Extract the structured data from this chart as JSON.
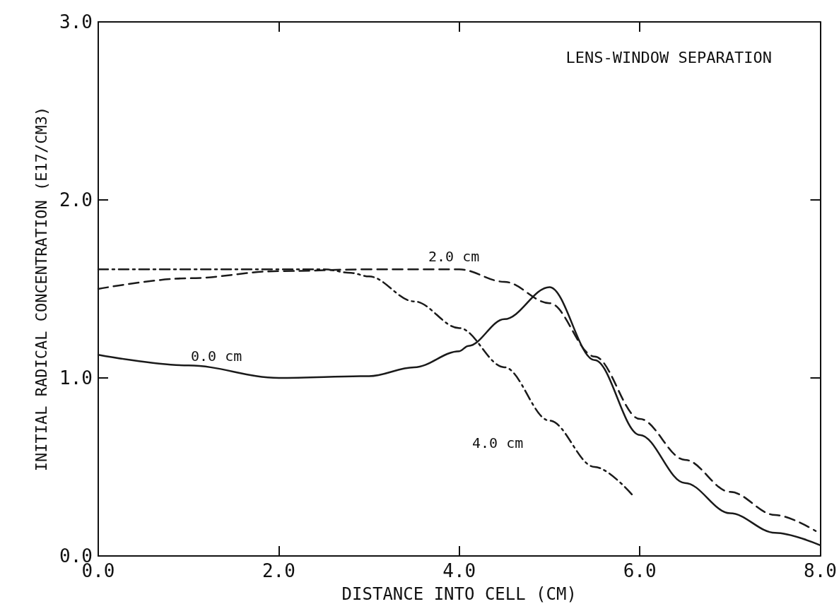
{
  "chart_data": {
    "type": "line",
    "title": "LENS-WINDOW SEPARATION",
    "xlabel": "DISTANCE INTO CELL (CM)",
    "ylabel": "INITIAL RADICAL CONCENTRATION (E17/CM3)",
    "xlim": [
      0,
      8
    ],
    "ylim": [
      0,
      3
    ],
    "xticks": [
      {
        "value": 0,
        "label": "0.0"
      },
      {
        "value": 2,
        "label": "2.0"
      },
      {
        "value": 4,
        "label": "4.0"
      },
      {
        "value": 6,
        "label": "6.0"
      },
      {
        "value": 8,
        "label": "8.0"
      }
    ],
    "yticks": [
      {
        "value": 0,
        "label": "0.0"
      },
      {
        "value": 1,
        "label": "1.0"
      },
      {
        "value": 2,
        "label": "2.0"
      },
      {
        "value": 3,
        "label": "3.0"
      }
    ],
    "grid": false,
    "marker": "none",
    "series": [
      {
        "color": "#1a1a1a",
        "line_style": "solid",
        "x": [
          0,
          1,
          2,
          3,
          3.5,
          4,
          4.1,
          4.5,
          5,
          5.5,
          6,
          6.5,
          7,
          7.5,
          8
        ],
        "values": [
          1.13,
          1.07,
          1.0,
          1.01,
          1.06,
          1.15,
          1.18,
          1.33,
          1.51,
          1.1,
          0.68,
          0.41,
          0.24,
          0.13,
          0.06
        ]
      },
      {
        "color": "#1a1a1a",
        "line_style": "dashed",
        "x": [
          0,
          1,
          2,
          3,
          4,
          4.5,
          5,
          5.5,
          6,
          6.5,
          7,
          7.5,
          7.95
        ],
        "values": [
          1.5,
          1.56,
          1.6,
          1.61,
          1.61,
          1.54,
          1.42,
          1.12,
          0.77,
          0.54,
          0.36,
          0.23,
          0.14
        ]
      },
      {
        "color": "#1a1a1a",
        "line_style": "dashdot",
        "x": [
          0,
          1,
          2,
          2.5,
          2.8,
          3,
          3.5,
          4,
          4.5,
          5,
          5.5,
          5.94
        ],
        "values": [
          1.61,
          1.61,
          1.61,
          1.61,
          1.59,
          1.57,
          1.43,
          1.28,
          1.06,
          0.76,
          0.5,
          0.33
        ]
      }
    ],
    "annotations": [
      "0.0 cm",
      "2.0 cm",
      "4.0 cm"
    ]
  }
}
